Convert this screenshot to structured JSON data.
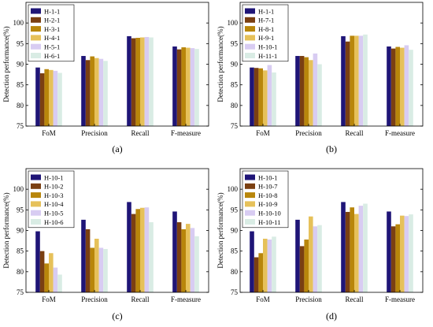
{
  "chart_data": [
    {
      "type": "bar",
      "panel_label": "(a)",
      "ylabel": "Detection performance(%)",
      "ylim": [
        75,
        105
      ],
      "yticks": [
        75,
        80,
        85,
        90,
        95,
        100
      ],
      "categories": [
        "FoM",
        "Precision",
        "Recall",
        "F-measure"
      ],
      "legend_position": "top-left",
      "series": [
        {
          "name": "H-1-1",
          "color": "#1f1577",
          "values": [
            89.2,
            92.0,
            96.8,
            94.3
          ]
        },
        {
          "name": "H-2-1",
          "color": "#7a3f12",
          "values": [
            87.8,
            91.0,
            96.3,
            93.6
          ]
        },
        {
          "name": "H-3-1",
          "color": "#b8860b",
          "values": [
            88.8,
            91.9,
            96.4,
            94.1
          ]
        },
        {
          "name": "H-4-1",
          "color": "#e6c15a",
          "values": [
            88.6,
            91.5,
            96.5,
            94.0
          ]
        },
        {
          "name": "H-5-1",
          "color": "#d8ccf2",
          "values": [
            88.4,
            91.3,
            96.6,
            93.9
          ]
        },
        {
          "name": "H-6-1",
          "color": "#d9ece4",
          "values": [
            87.9,
            90.8,
            96.5,
            93.7
          ]
        }
      ]
    },
    {
      "type": "bar",
      "panel_label": "(b)",
      "ylabel": "Detection performance(%)",
      "ylim": [
        75,
        105
      ],
      "yticks": [
        75,
        80,
        85,
        90,
        95,
        100
      ],
      "categories": [
        "FoM",
        "Precision",
        "Recall",
        "F-measure"
      ],
      "legend_position": "top-left",
      "series": [
        {
          "name": "H-1-1",
          "color": "#1f1577",
          "values": [
            89.2,
            92.0,
            96.8,
            94.3
          ]
        },
        {
          "name": "H-7-1",
          "color": "#7a3f12",
          "values": [
            89.1,
            92.0,
            95.5,
            93.8
          ]
        },
        {
          "name": "H-8-1",
          "color": "#b8860b",
          "values": [
            89.0,
            91.7,
            96.9,
            94.2
          ]
        },
        {
          "name": "H-9-1",
          "color": "#e6c15a",
          "values": [
            88.5,
            91.0,
            96.9,
            94.0
          ]
        },
        {
          "name": "H-10-1",
          "color": "#d8ccf2",
          "values": [
            89.8,
            92.6,
            96.9,
            94.6
          ]
        },
        {
          "name": "H-11-1",
          "color": "#d9ece4",
          "values": [
            88.0,
            90.0,
            97.2,
            93.5
          ]
        }
      ]
    },
    {
      "type": "bar",
      "panel_label": "(c)",
      "ylabel": "Detection performance(%)",
      "ylim": [
        75,
        105
      ],
      "yticks": [
        75,
        80,
        85,
        90,
        95,
        100
      ],
      "categories": [
        "FoM",
        "Precision",
        "Recall",
        "F-measure"
      ],
      "legend_position": "top-left",
      "series": [
        {
          "name": "H-10-1",
          "color": "#1f1577",
          "values": [
            89.8,
            92.6,
            96.9,
            94.6
          ]
        },
        {
          "name": "H-10-2",
          "color": "#7a3f12",
          "values": [
            85.0,
            90.3,
            94.0,
            92.0
          ]
        },
        {
          "name": "H-10-3",
          "color": "#b8860b",
          "values": [
            82.0,
            85.8,
            95.2,
            90.3
          ]
        },
        {
          "name": "H-10-4",
          "color": "#e6c15a",
          "values": [
            84.5,
            88.0,
            95.5,
            91.6
          ]
        },
        {
          "name": "H-10-5",
          "color": "#d8ccf2",
          "values": [
            81.0,
            85.8,
            95.6,
            90.6
          ]
        },
        {
          "name": "H-10-6",
          "color": "#d9ece4",
          "values": [
            79.3,
            85.5,
            92.0,
            88.6
          ]
        }
      ]
    },
    {
      "type": "bar",
      "panel_label": "(d)",
      "ylabel": "Detection performance(%)",
      "ylim": [
        75,
        105
      ],
      "yticks": [
        75,
        80,
        85,
        90,
        95,
        100
      ],
      "categories": [
        "FoM",
        "Precision",
        "Recall",
        "F-measure"
      ],
      "legend_position": "top-left",
      "series": [
        {
          "name": "H-10-1",
          "color": "#1f1577",
          "values": [
            89.8,
            92.6,
            96.9,
            94.6
          ]
        },
        {
          "name": "H-10-7",
          "color": "#7a3f12",
          "values": [
            83.5,
            86.2,
            94.5,
            91.0
          ]
        },
        {
          "name": "H-10-8",
          "color": "#b8860b",
          "values": [
            84.5,
            87.8,
            95.6,
            91.5
          ]
        },
        {
          "name": "H-10-9",
          "color": "#e6c15a",
          "values": [
            88.0,
            93.4,
            94.0,
            93.6
          ]
        },
        {
          "name": "H-10-10",
          "color": "#d8ccf2",
          "values": [
            87.8,
            91.0,
            96.0,
            93.5
          ]
        },
        {
          "name": "H-10-11",
          "color": "#d9ece4",
          "values": [
            88.5,
            91.3,
            96.5,
            93.9
          ]
        }
      ]
    }
  ]
}
